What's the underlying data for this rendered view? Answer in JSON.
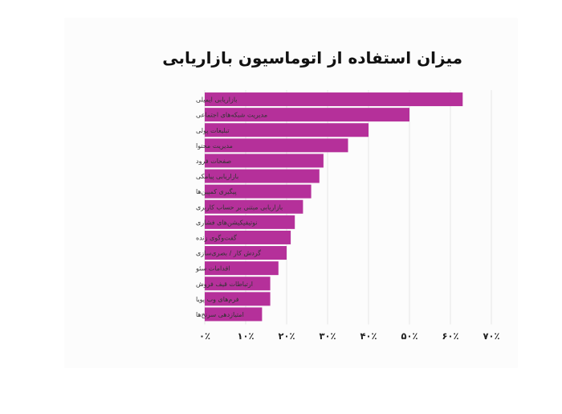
{
  "chart_data": {
    "type": "bar",
    "orientation": "horizontal",
    "title": "میزان استفاده از اتوماسیون بازاریابی",
    "categories": [
      "بازاریابی ایمیلی",
      "مدیریت شبکه‌های اجتماعی",
      "تبلیغات پولی",
      "مدیریت محتوا",
      "صفحات فرود",
      "بازاریابی پیامکی",
      "پیگیری کمپین‌ها",
      "بازاریابی مبتنی بر حساب کاربری",
      "نوتیفیکیشن‌های فشاری",
      "گفت‌وگوی زنده",
      "گردش کار / بصری‌سازی",
      "اقدامات سئو",
      "ارتباطات قیف فروش",
      "فرم‌های وب پویا",
      "امتیازدهی سرنخ‌ها"
    ],
    "values": [
      63,
      50,
      40,
      35,
      29,
      28,
      26,
      24,
      22,
      21,
      20,
      18,
      16,
      16,
      14
    ],
    "xlim": [
      0,
      70
    ],
    "tick_labels": [
      "۰٪",
      "۱۰٪",
      "۲۰٪",
      "۳۰٪",
      "۴۰٪",
      "۵۰٪",
      "۶۰٪",
      "۷۰٪"
    ],
    "grid": true,
    "legend": "none",
    "bar_color": "#b5309a",
    "grid_color": "#e6e6e6"
  }
}
